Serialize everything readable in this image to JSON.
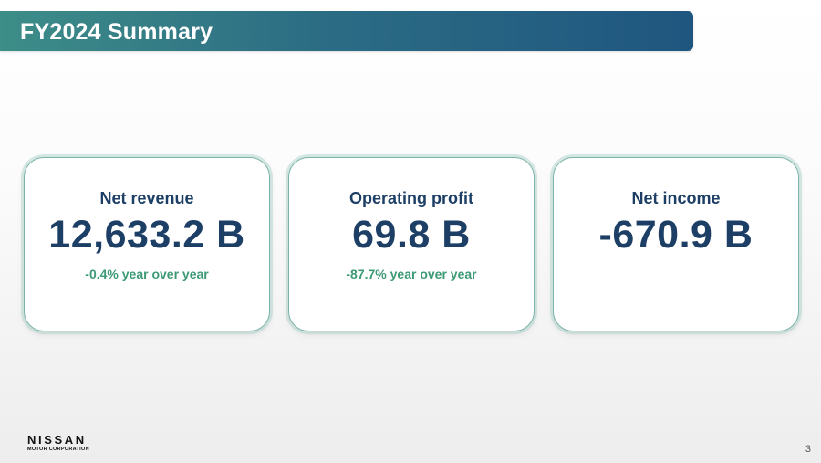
{
  "header": {
    "title": "FY2024 Summary"
  },
  "cards": [
    {
      "label": "Net revenue",
      "value": "12,633.2 B",
      "change": "-0.4% year over year"
    },
    {
      "label": "Operating profit",
      "value": "69.8 B",
      "change": "-87.7% year over year"
    },
    {
      "label": "Net income",
      "value": "-670.9 B",
      "change": ""
    }
  ],
  "footer": {
    "logo_main": "NISSAN",
    "logo_sub": "MOTOR CORPORATION",
    "page_number": "3"
  },
  "colors": {
    "title_bar_start": "#3d8d88",
    "title_bar_end": "#1f5680",
    "value_text": "#1d3f66",
    "change_text": "#3c9a74",
    "card_border": "#7bb3a8"
  }
}
